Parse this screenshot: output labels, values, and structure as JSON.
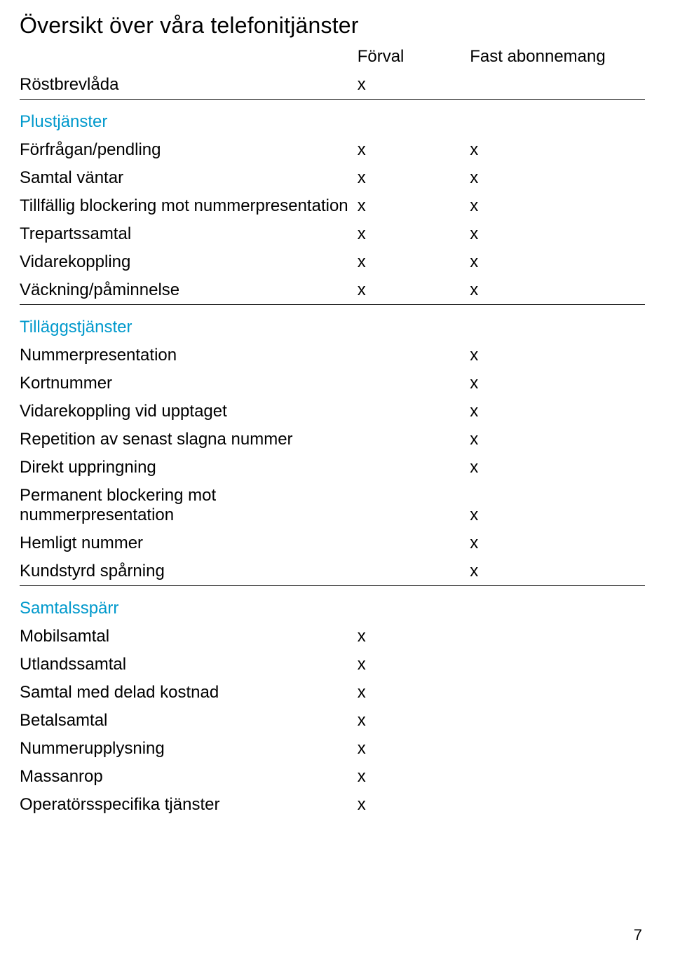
{
  "title": "Översikt över våra telefonitjänster",
  "columns": {
    "c1": "Förval",
    "c2": "Fast abonnemang"
  },
  "colors": {
    "section_header": "#0099cc",
    "text": "#000000",
    "background": "#ffffff",
    "divider": "#000000"
  },
  "fonts": {
    "title_size": 32,
    "body_size": 24,
    "family": "Helvetica Neue"
  },
  "sections": [
    {
      "header": null,
      "rows": [
        {
          "label": "Röstbrevlåda",
          "c1": "x",
          "c2": ""
        }
      ]
    },
    {
      "header": "Plustjänster",
      "rows": [
        {
          "label": "Förfrågan/pendling",
          "c1": "x",
          "c2": "x"
        },
        {
          "label": "Samtal väntar",
          "c1": "x",
          "c2": "x"
        },
        {
          "label": "Tillfällig blockering mot nummerpresentation",
          "c1": "x",
          "c2": "x"
        },
        {
          "label": "Trepartssamtal",
          "c1": "x",
          "c2": "x"
        },
        {
          "label": "Vidarekoppling",
          "c1": "x",
          "c2": "x"
        },
        {
          "label": "Väckning/påminnelse",
          "c1": "x",
          "c2": "x"
        }
      ]
    },
    {
      "header": "Tilläggstjänster",
      "rows": [
        {
          "label": "Nummerpresentation",
          "c1": "",
          "c2": "x"
        },
        {
          "label": "Kortnummer",
          "c1": "",
          "c2": "x"
        },
        {
          "label": "Vidarekoppling vid upptaget",
          "c1": "",
          "c2": "x"
        },
        {
          "label": "Repetition av senast slagna nummer",
          "c1": "",
          "c2": "x"
        },
        {
          "label": "Direkt uppringning",
          "c1": "",
          "c2": "x"
        },
        {
          "label": "Permanent blockering mot nummerpresentation",
          "c1": "",
          "c2": "x"
        },
        {
          "label": "Hemligt nummer",
          "c1": "",
          "c2": "x"
        },
        {
          "label": "Kundstyrd spårning",
          "c1": "",
          "c2": "x"
        }
      ]
    },
    {
      "header": "Samtalsspärr",
      "rows": [
        {
          "label": "Mobilsamtal",
          "c1": "x",
          "c2": ""
        },
        {
          "label": "Utlandssamtal",
          "c1": "x",
          "c2": ""
        },
        {
          "label": "Samtal med delad kostnad",
          "c1": "x",
          "c2": ""
        },
        {
          "label": "Betalsamtal",
          "c1": "x",
          "c2": ""
        },
        {
          "label": "Nummerupplysning",
          "c1": "x",
          "c2": ""
        },
        {
          "label": "Massanrop",
          "c1": "x",
          "c2": ""
        },
        {
          "label": "Operatörsspecifika tjänster",
          "c1": "x",
          "c2": ""
        }
      ]
    }
  ],
  "page_number": "7"
}
